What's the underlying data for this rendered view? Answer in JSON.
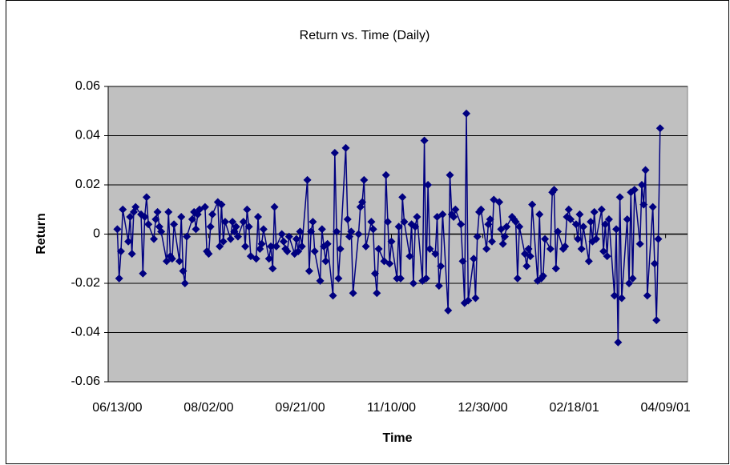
{
  "chart_data": {
    "type": "line",
    "title": "Return vs. Time (Daily)",
    "x_label": "Time",
    "y_label": "Return",
    "color": "#000080",
    "grid": true,
    "marker": "diamond",
    "xlim": [
      36685,
      37002
    ],
    "xticks": [
      {
        "value": 36690,
        "label": "06/13/00"
      },
      {
        "value": 36740,
        "label": "08/02/00"
      },
      {
        "value": 36790,
        "label": "09/21/00"
      },
      {
        "value": 36840,
        "label": "11/10/00"
      },
      {
        "value": 36890,
        "label": "12/30/00"
      },
      {
        "value": 36940,
        "label": "02/18/01"
      },
      {
        "value": 36990,
        "label": "04/09/01"
      }
    ],
    "ylim": [
      -0.06,
      0.06
    ],
    "yticks": [
      -0.06,
      -0.04,
      -0.02,
      0,
      0.02,
      0.04,
      0.06
    ],
    "x": [
      36690,
      36691,
      36692,
      36693,
      36696,
      36697,
      36698,
      36699,
      36700,
      36703,
      36704,
      36705,
      36706,
      36707,
      36710,
      36711,
      36712,
      36713,
      36714,
      36717,
      36718,
      36719,
      36720,
      36721,
      36724,
      36725,
      36726,
      36727,
      36728,
      36731,
      36732,
      36733,
      36734,
      36735,
      36738,
      36739,
      36740,
      36741,
      36742,
      36745,
      36746,
      36747,
      36748,
      36749,
      36752,
      36753,
      36754,
      36755,
      36756,
      36759,
      36760,
      36761,
      36762,
      36763,
      36766,
      36767,
      36768,
      36769,
      36770,
      36773,
      36774,
      36775,
      36776,
      36777,
      36780,
      36781,
      36782,
      36783,
      36784,
      36787,
      36788,
      36789,
      36790,
      36791,
      36794,
      36795,
      36796,
      36797,
      36798,
      36801,
      36802,
      36803,
      36804,
      36805,
      36808,
      36809,
      36810,
      36811,
      36812,
      36815,
      36816,
      36817,
      36818,
      36819,
      36822,
      36823,
      36824,
      36825,
      36826,
      36829,
      36830,
      36831,
      36832,
      36833,
      36836,
      36837,
      36838,
      36839,
      36840,
      36843,
      36844,
      36845,
      36846,
      36847,
      36850,
      36851,
      36852,
      36853,
      36854,
      36857,
      36858,
      36859,
      36860,
      36861,
      36864,
      36865,
      36866,
      36867,
      36868,
      36871,
      36872,
      36873,
      36874,
      36875,
      36878,
      36879,
      36880,
      36881,
      36882,
      36885,
      36886,
      36887,
      36888,
      36889,
      36892,
      36893,
      36894,
      36895,
      36896,
      36899,
      36900,
      36901,
      36902,
      36903,
      36906,
      36907,
      36908,
      36909,
      36910,
      36913,
      36914,
      36915,
      36916,
      36917,
      36920,
      36921,
      36922,
      36923,
      36924,
      36927,
      36928,
      36929,
      36930,
      36931,
      36934,
      36935,
      36936,
      36937,
      36938,
      36941,
      36942,
      36943,
      36944,
      36945,
      36948,
      36949,
      36950,
      36951,
      36952,
      36955,
      36956,
      36957,
      36958,
      36959,
      36962,
      36963,
      36964,
      36965,
      36966,
      36969,
      36970,
      36971,
      36972,
      36973,
      36976,
      36977,
      36978,
      36979,
      36980,
      36983,
      36984,
      36985,
      36986,
      36987
    ],
    "values": [
      0.002,
      -0.018,
      -0.007,
      0.01,
      -0.003,
      0.007,
      -0.008,
      0.009,
      0.011,
      0.008,
      -0.016,
      0.007,
      0.015,
      0.004,
      -0.002,
      0.006,
      0.009,
      0.003,
      0.001,
      -0.011,
      0.009,
      -0.009,
      -0.01,
      0.004,
      -0.011,
      0.007,
      -0.015,
      -0.02,
      -0.001,
      0.006,
      0.009,
      0.002,
      0.008,
      0.01,
      0.011,
      -0.007,
      -0.008,
      0.003,
      0.008,
      0.013,
      -0.005,
      0.012,
      -0.003,
      0.005,
      -0.002,
      0.005,
      0.001,
      0.003,
      -0.001,
      0.005,
      -0.005,
      0.01,
      0.003,
      -0.009,
      -0.01,
      0.007,
      -0.006,
      -0.004,
      0.002,
      -0.01,
      -0.005,
      -0.014,
      0.011,
      -0.005,
      0.0,
      -0.003,
      -0.006,
      -0.007,
      -0.001,
      -0.008,
      -0.002,
      -0.007,
      0.001,
      -0.005,
      0.022,
      -0.015,
      0.001,
      0.005,
      -0.007,
      -0.019,
      0.002,
      -0.005,
      -0.011,
      -0.004,
      -0.025,
      0.033,
      0.001,
      -0.018,
      -0.006,
      0.035,
      0.006,
      -0.001,
      0.001,
      -0.024,
      0.0,
      0.011,
      0.013,
      0.022,
      -0.005,
      0.005,
      0.002,
      -0.016,
      -0.024,
      -0.006,
      -0.011,
      0.024,
      0.005,
      -0.012,
      -0.003,
      -0.018,
      0.003,
      -0.018,
      0.015,
      0.005,
      -0.009,
      0.004,
      -0.02,
      0.003,
      0.007,
      -0.019,
      0.038,
      -0.018,
      0.02,
      -0.006,
      -0.008,
      0.007,
      -0.021,
      -0.013,
      0.008,
      -0.031,
      0.024,
      0.008,
      0.007,
      0.01,
      0.004,
      -0.011,
      -0.028,
      0.049,
      -0.027,
      -0.01,
      -0.026,
      -0.001,
      0.009,
      0.01,
      -0.006,
      0.004,
      0.006,
      -0.003,
      0.014,
      0.013,
      0.002,
      -0.004,
      -0.001,
      0.003,
      0.007,
      0.006,
      0.005,
      -0.018,
      0.003,
      -0.008,
      -0.013,
      -0.006,
      -0.009,
      0.012,
      -0.019,
      0.008,
      -0.018,
      -0.017,
      -0.002,
      -0.006,
      0.017,
      0.018,
      -0.014,
      0.001,
      -0.006,
      -0.005,
      0.007,
      0.01,
      0.006,
      0.004,
      -0.002,
      0.008,
      -0.006,
      0.003,
      -0.011,
      0.005,
      -0.003,
      0.009,
      -0.002,
      0.01,
      -0.007,
      0.004,
      -0.009,
      0.006,
      -0.025,
      0.002,
      -0.044,
      0.015,
      -0.026,
      0.006,
      -0.02,
      0.017,
      -0.018,
      0.018,
      -0.004,
      0.02,
      0.012,
      0.026,
      -0.025,
      0.011,
      -0.012,
      -0.035,
      -0.002,
      0.043
    ]
  }
}
